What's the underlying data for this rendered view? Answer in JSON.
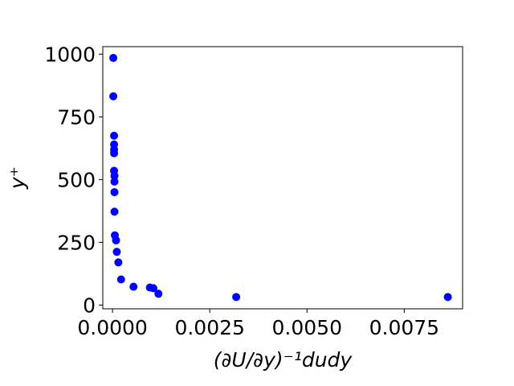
{
  "chart_data": {
    "type": "scatter",
    "title": "",
    "xlabel": "(∂U/∂y)⁻¹dudy",
    "ylabel": "y⁺",
    "xlim": [
      -0.00025,
      0.009
    ],
    "ylim": [
      -15,
      1030
    ],
    "xticks": [
      0.0,
      0.0025,
      0.005,
      0.0075
    ],
    "xtick_labels": [
      "0.0000",
      "0.0025",
      "0.0050",
      "0.0075"
    ],
    "yticks": [
      0,
      250,
      500,
      750,
      1000
    ],
    "ytick_labels": [
      "0",
      "250",
      "500",
      "750",
      "1000"
    ],
    "grid": false,
    "color": "#0000ff",
    "series": [
      {
        "x": [
          2e-05,
          2e-05,
          4e-05,
          4e-05,
          4e-05,
          4e-05,
          4e-05,
          5e-05,
          5e-05,
          5e-05,
          5e-05,
          6e-05,
          9e-05,
          0.00011,
          0.00015,
          0.00022,
          0.00054,
          0.00096,
          0.00105,
          0.00118,
          0.00318,
          0.00862
        ],
        "y": [
          985,
          832,
          675,
          640,
          620,
          605,
          535,
          515,
          492,
          450,
          372,
          278,
          258,
          212,
          170,
          102,
          73,
          70,
          67,
          45,
          32,
          32
        ]
      }
    ]
  }
}
